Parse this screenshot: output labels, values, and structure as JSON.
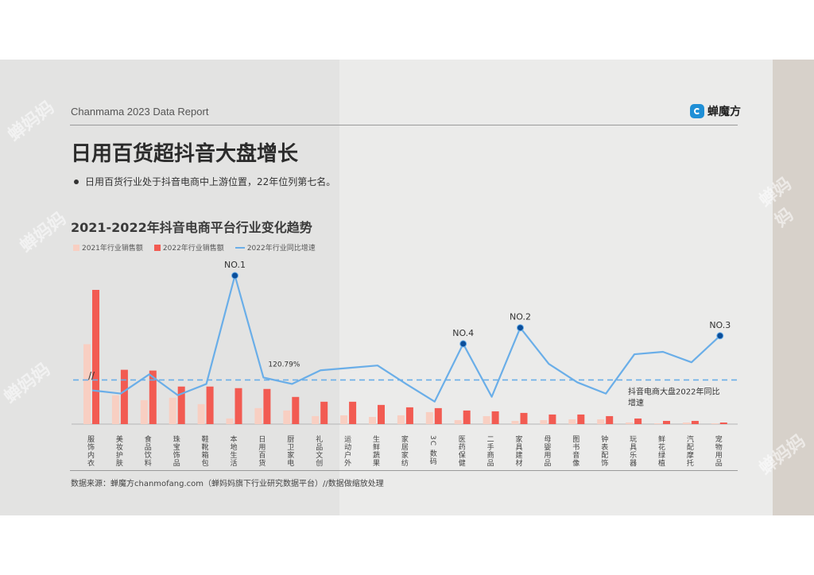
{
  "header": {
    "report_title": "Chanmama 2023 Data Report",
    "brand": "蝉魔方",
    "brand_icon": "chanmofang-logo-icon"
  },
  "title": "日用百货超抖音大盘增长",
  "bullet": "日用百货行业处于抖音电商中上游位置，22年位列第七名。",
  "watermark": "蝉妈妈",
  "chart_data": {
    "type": "bar",
    "title": "2021-2022年抖音电商平台行业变化趋势",
    "categories": [
      "服饰内衣",
      "美妆护肤",
      "食品饮料",
      "珠宝饰品",
      "鞋靴箱包",
      "本地生活",
      "日用百货",
      "厨卫家电",
      "礼品文创",
      "运动户外",
      "生鲜蔬果",
      "家居家纺",
      "3C数码",
      "医药保健",
      "二手商品",
      "家具建材",
      "母婴用品",
      "图书音像",
      "钟表配饰",
      "玩具乐器",
      "鲜花绿植",
      "汽配摩托",
      "宠物用品"
    ],
    "category_labels": [
      "服饰内衣",
      "美妆护肤",
      "食品饮料",
      "珠宝饰品",
      "鞋靴箱包",
      "本地生活",
      "日用百货",
      "厨卫家电",
      "礼品文创",
      "运动户外",
      "生鲜蔬果",
      "家居家纺",
      "3C 数码",
      "医药保健",
      "二手商品",
      "家具建材",
      "母婴用品",
      "图书音像",
      "钟表配饰",
      "玩具乐器",
      "鲜花绿植",
      "汽配摩托",
      "宠物用品"
    ],
    "series": [
      {
        "name": "2021年行业销售额",
        "color": "#f8cfc2",
        "values": [
          100,
          36,
          30,
          33,
          25,
          7,
          20,
          17,
          10,
          11,
          9,
          11,
          15,
          5,
          10,
          4,
          5,
          6,
          6,
          2,
          1,
          2,
          1
        ]
      },
      {
        "name": "2022年行业销售额",
        "color": "#f25b52",
        "values": [
          168,
          68,
          67,
          47,
          47,
          45,
          44,
          34,
          28,
          28,
          24,
          21,
          20,
          17,
          16,
          14,
          12,
          12,
          10,
          7,
          4,
          4,
          2
        ]
      }
    ],
    "growth": {
      "name": "2022年行业同比增速",
      "color": "#6aaee8",
      "values": [
        42,
        38,
        62,
        36,
        50,
        185,
        58,
        50,
        67,
        70,
        73,
        50,
        28,
        100,
        34,
        120,
        75,
        52,
        38,
        87,
        90,
        77,
        110
      ]
    },
    "baseline": {
      "label_line1": "抖音电商大盘2022年同比",
      "label_line2": "增速",
      "value": 55,
      "color": "#6aaee8"
    },
    "annotations": [
      {
        "category_index": 5,
        "text": "NO.1"
      },
      {
        "category_index": 15,
        "text": "NO.2"
      },
      {
        "category_index": 22,
        "text": "NO.3"
      },
      {
        "category_index": 13,
        "text": "NO.4"
      }
    ],
    "growth_label": {
      "category_index": 6,
      "text": "120.79%"
    },
    "axis_break": "//"
  },
  "source": "数据来源：蝉魔方chanmofang.com（蝉妈妈旗下行业研究数据平台）//数据做缩放处理"
}
